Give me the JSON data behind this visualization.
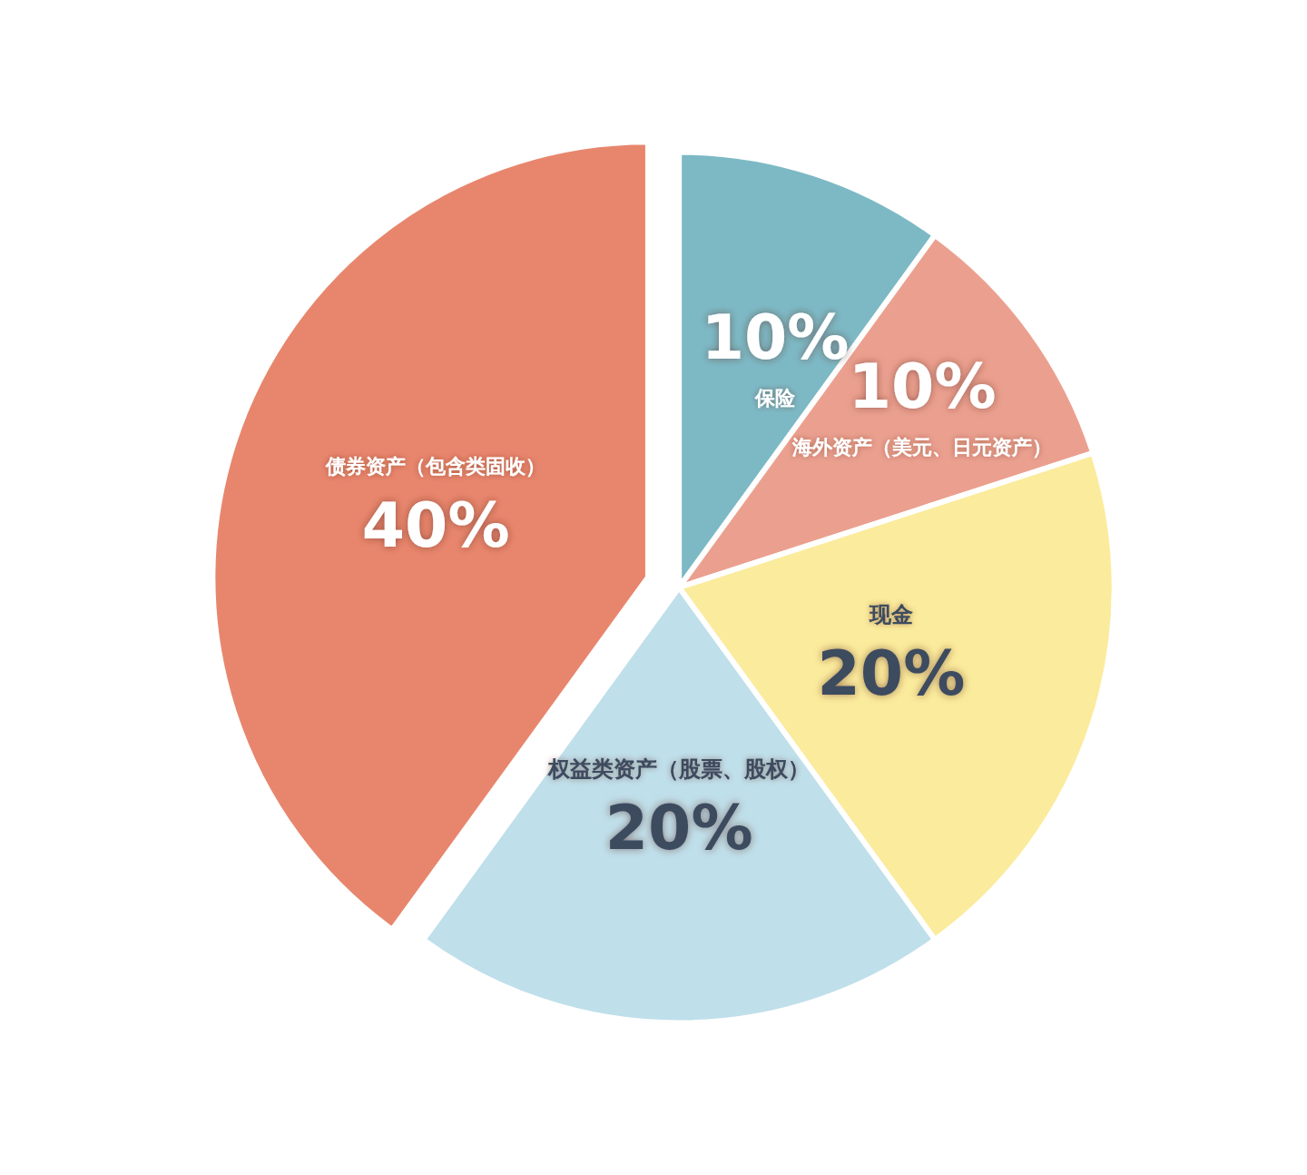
{
  "chart_data": {
    "type": "pie",
    "categories": [
      "保险",
      "海外资产（美元、日元资产）",
      "现金",
      "权益类资产（股票、股权）",
      "债券资产（包含类固收）"
    ],
    "values": [
      10,
      10,
      20,
      20,
      40
    ],
    "colors": [
      "#7db9c5",
      "#eba08f",
      "#fbeb9c",
      "#bfdfea",
      "#e8866d"
    ],
    "value_labels": [
      "10%",
      "10%",
      "20%",
      "20%",
      "40%"
    ],
    "legend": false
  }
}
